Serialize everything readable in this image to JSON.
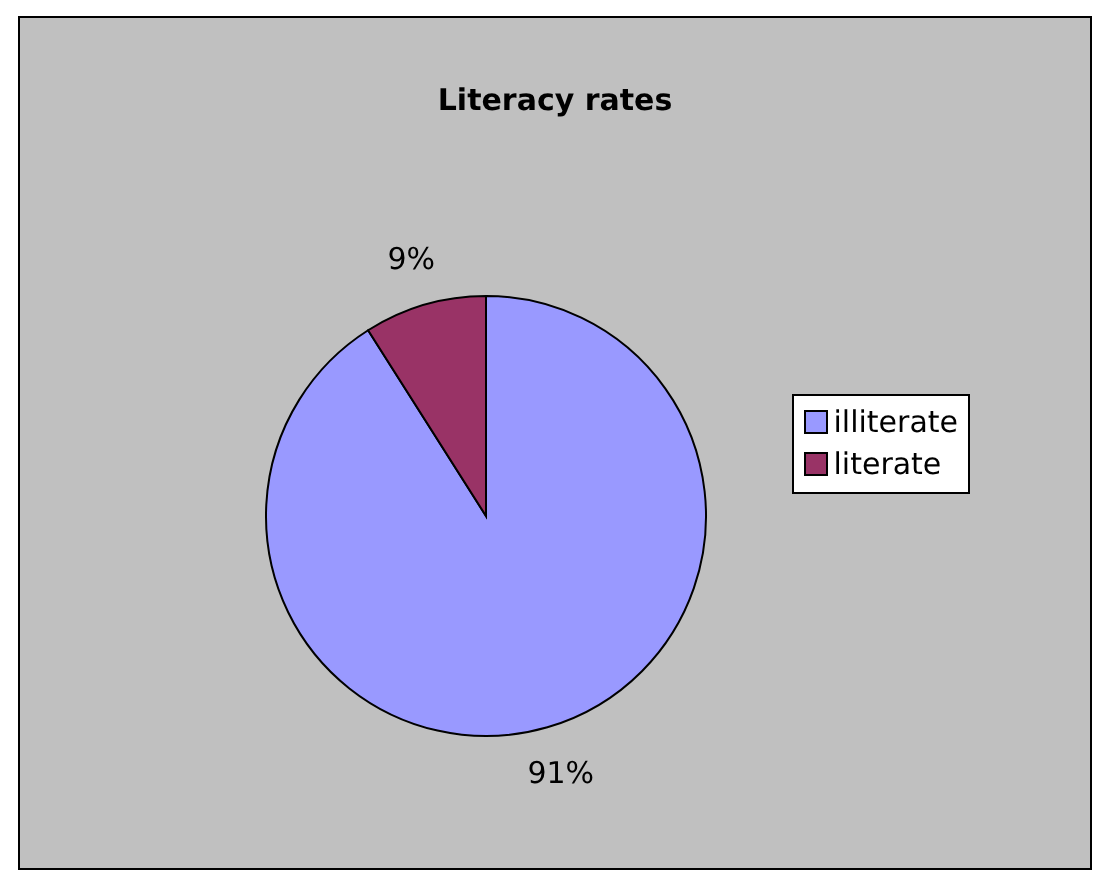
{
  "chart_data": {
    "type": "pie",
    "title": "Literacy rates",
    "categories": [
      "illiterate",
      "literate"
    ],
    "values": [
      91,
      9
    ],
    "colors": [
      "#9999ff",
      "#993366"
    ],
    "value_labels": [
      "91%",
      "9%"
    ],
    "legend": "right"
  }
}
